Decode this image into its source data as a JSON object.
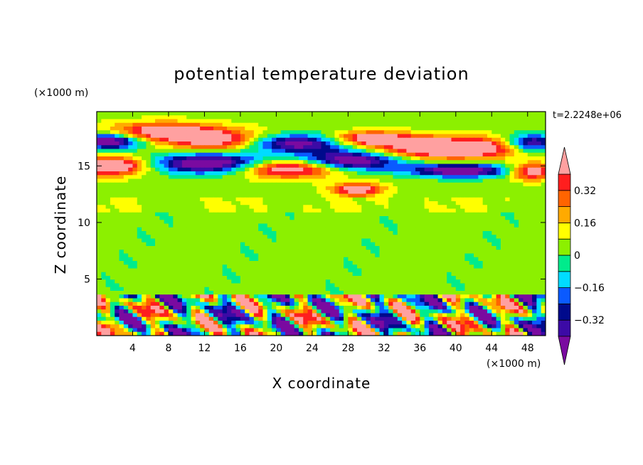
{
  "chart_data": {
    "type": "heatmap",
    "title": "potential temperature deviation",
    "xlabel": "X coordinate",
    "ylabel": "Z coordinate",
    "x_unit": "(×1000 m)",
    "y_unit": "(×1000 m)",
    "time_label": "t=2.2248e+06",
    "xlim": [
      0,
      50
    ],
    "ylim": [
      0,
      19.8
    ],
    "x_ticks": [
      4,
      8,
      12,
      16,
      20,
      24,
      28,
      32,
      36,
      40,
      44,
      48
    ],
    "y_ticks": [
      5,
      10,
      15
    ],
    "colorbar": {
      "levels": [
        -0.4,
        -0.32,
        -0.24,
        -0.16,
        -0.08,
        0,
        0.08,
        0.16,
        0.24,
        0.32,
        0.4
      ],
      "tick_labels": [
        "0.32",
        "0.16",
        "0",
        "−0.16",
        "−0.32"
      ],
      "tick_values": [
        0.32,
        0.16,
        0,
        -0.16,
        -0.32
      ],
      "colors": [
        "#7a0aa0",
        "#3c0aa6",
        "#000a8c",
        "#0a5aff",
        "#00dcff",
        "#00eb8c",
        "#8cf000",
        "#ffff00",
        "#ffaa00",
        "#ff6400",
        "#ff1e1e",
        "#ffa0a0"
      ]
    }
  }
}
